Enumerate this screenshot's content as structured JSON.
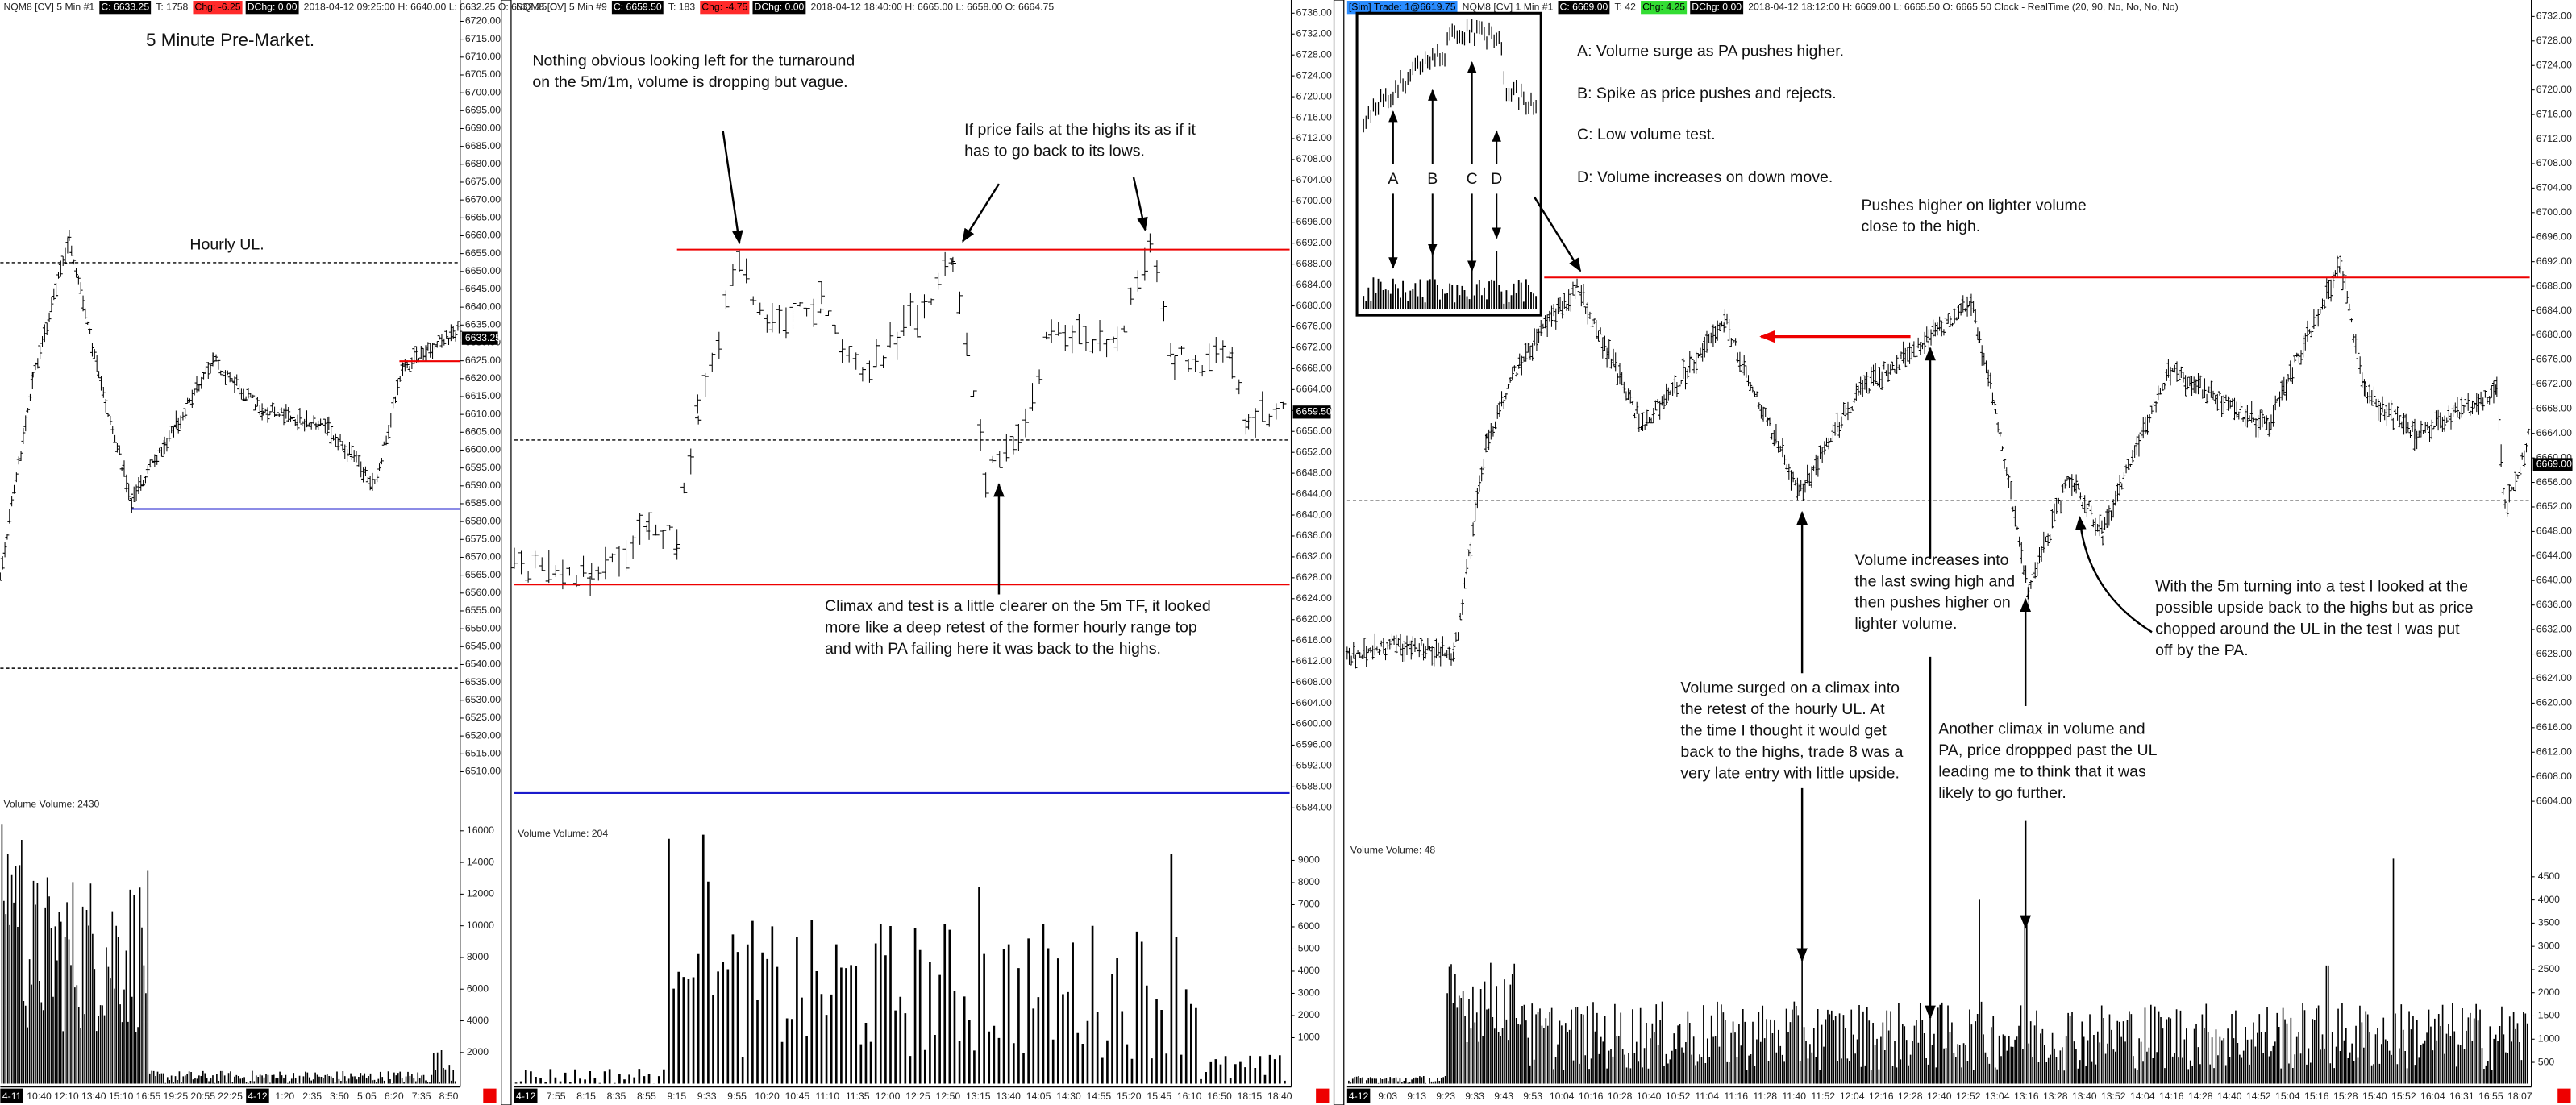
{
  "panels": [
    {
      "header": {
        "symbol": "NQM8 [CV]  5 Min  #1",
        "close": "C: 6633.25",
        "ticks": "T: 1758",
        "change": "Chg: -6.25",
        "day_change": "DChg: 0.00",
        "info": "2018-04-12 09:25:00 H: 6640.00 L: 6632.25 O: 6632.25 O:"
      },
      "change_color": "#ff2a2a",
      "last_price": "6633.25",
      "price_axis": [
        "6720.00",
        "6715.00",
        "6710.00",
        "6705.00",
        "6700.00",
        "6695.00",
        "6690.00",
        "6685.00",
        "6680.00",
        "6675.00",
        "6670.00",
        "6665.00",
        "6660.00",
        "6655.00",
        "6650.00",
        "6645.00",
        "6640.00",
        "6635.00",
        "6630.00",
        "6625.00",
        "6620.00",
        "6615.00",
        "6610.00",
        "6605.00",
        "6600.00",
        "6595.00",
        "6590.00",
        "6585.00",
        "6580.00",
        "6575.00",
        "6570.00",
        "6565.00",
        "6560.00",
        "6555.00",
        "6550.00",
        "6545.00",
        "6540.00",
        "6535.00",
        "6530.00",
        "6525.00",
        "6520.00",
        "6515.00",
        "6510.00"
      ],
      "volume_title": "Volume  Volume: 2430",
      "volume_axis": [
        "16000",
        "14000",
        "12000",
        "10000",
        "8000",
        "6000",
        "4000",
        "2000"
      ],
      "time_axis": [
        "4-11",
        "10:40",
        "12:10",
        "13:40",
        "15:10",
        "16:55",
        "19:25",
        "20:55",
        "22:25",
        "4-12",
        "1:20",
        "2:35",
        "3:50",
        "5:05",
        "6:20",
        "7:35",
        "8:50"
      ],
      "annotations": [
        {
          "lines": [
            "5 Minute Pre-Market."
          ]
        },
        {
          "lines": [
            "Hourly UL."
          ]
        }
      ]
    },
    {
      "header": {
        "symbol": "NQM8 [CV]  5 Min  #9",
        "close": "C: 6659.50",
        "ticks": "T: 183",
        "change": "Chg: -4.75",
        "day_change": "DChg: 0.00",
        "info": "2018-04-12 18:40:00 H: 6665.00 L: 6658.00 O: 6664.75"
      },
      "change_color": "#ff2a2a",
      "last_price": "6659.50",
      "price_axis": [
        "6736.00",
        "6732.00",
        "6728.00",
        "6724.00",
        "6720.00",
        "6716.00",
        "6712.00",
        "6708.00",
        "6704.00",
        "6700.00",
        "6696.00",
        "6692.00",
        "6688.00",
        "6684.00",
        "6680.00",
        "6676.00",
        "6672.00",
        "6668.00",
        "6664.00",
        "6660.00",
        "6656.00",
        "6652.00",
        "6648.00",
        "6644.00",
        "6640.00",
        "6636.00",
        "6632.00",
        "6628.00",
        "6624.00",
        "6620.00",
        "6616.00",
        "6612.00",
        "6608.00",
        "6604.00",
        "6600.00",
        "6596.00",
        "6592.00",
        "6588.00",
        "6584.00"
      ],
      "volume_title": "Volume  Volume: 204",
      "volume_axis": [
        "9000",
        "8000",
        "7000",
        "6000",
        "5000",
        "4000",
        "3000",
        "2000",
        "1000"
      ],
      "time_axis": [
        "4-12",
        "7:55",
        "8:15",
        "8:35",
        "8:55",
        "9:15",
        "9:33",
        "9:55",
        "10:20",
        "10:45",
        "11:10",
        "11:35",
        "12:00",
        "12:25",
        "12:50",
        "13:15",
        "13:40",
        "14:05",
        "14:30",
        "14:55",
        "15:20",
        "15:45",
        "16:10",
        "16:50",
        "18:15",
        "18:40"
      ],
      "annotations": [
        {
          "lines": [
            "Nothing obvious looking left for the turnaround",
            "on the 5m/1m, volume is dropping but vague."
          ]
        },
        {
          "lines": [
            "If price fails at the highs its as if it",
            "has to go back to its lows."
          ]
        },
        {
          "lines": [
            "Climax and test is a little clearer on the 5m TF, it looked",
            "more like a deep retest of the former hourly range top",
            "and with PA failing here it was back to the highs."
          ]
        }
      ]
    },
    {
      "header": {
        "sim": "[Sim]  Trade: 1@6619.75",
        "symbol": "NQM8 [CV]  1 Min  #1",
        "close": "C: 6669.00",
        "ticks": "T: 42",
        "change": "Chg: 4.25",
        "day_change": "DChg: 0.00",
        "info": "2018-04-12 18:12:00 H: 6669.00 L: 6665.50 O: 6665.50 Clock - RealTime   (20, 90, No, No, No, No)"
      },
      "change_color": "#33dd33",
      "last_price": "6669.00",
      "price_axis": [
        "6732.00",
        "6728.00",
        "6724.00",
        "6720.00",
        "6716.00",
        "6712.00",
        "6708.00",
        "6704.00",
        "6700.00",
        "6696.00",
        "6692.00",
        "6688.00",
        "6684.00",
        "6680.00",
        "6676.00",
        "6672.00",
        "6668.00",
        "6664.00",
        "6660.00",
        "6656.00",
        "6652.00",
        "6648.00",
        "6644.00",
        "6640.00",
        "6636.00",
        "6632.00",
        "6628.00",
        "6624.00",
        "6620.00",
        "6616.00",
        "6612.00",
        "6608.00",
        "6604.00"
      ],
      "volume_title": "Volume  Volume: 48",
      "volume_axis": [
        "4500",
        "4000",
        "3500",
        "3000",
        "2500",
        "2000",
        "1500",
        "1000",
        "500"
      ],
      "time_axis": [
        "4-12",
        "9:03",
        "9:13",
        "9:23",
        "9:33",
        "9:43",
        "9:53",
        "10:04",
        "10:16",
        "10:28",
        "10:40",
        "10:52",
        "11:04",
        "11:16",
        "11:28",
        "11:40",
        "11:52",
        "12:04",
        "12:16",
        "12:28",
        "12:40",
        "12:52",
        "13:04",
        "13:16",
        "13:28",
        "13:40",
        "13:52",
        "14:04",
        "14:16",
        "14:28",
        "14:40",
        "14:52",
        "15:04",
        "15:16",
        "15:28",
        "15:40",
        "15:52",
        "16:04",
        "16:31",
        "16:55",
        "18:07"
      ],
      "inset_labels": [
        "A",
        "B",
        "C",
        "D"
      ],
      "annotations": [
        {
          "lines": [
            "A:  Volume surge as PA pushes higher."
          ]
        },
        {
          "lines": [
            "B:  Spike as price pushes and rejects."
          ]
        },
        {
          "lines": [
            "C:  Low volume test."
          ]
        },
        {
          "lines": [
            "D: Volume increases on down move."
          ]
        },
        {
          "lines": [
            "Pushes higher on lighter volume",
            "close to the high."
          ]
        },
        {
          "lines": [
            "Volume increases into",
            "the last swing high and",
            "then pushes higher on",
            "lighter volume."
          ]
        },
        {
          "lines": [
            "With the 5m turning into a test I looked at the",
            "possible upside back to the highs but as price",
            "chopped around the UL in the test I was put",
            "off by the PA."
          ]
        },
        {
          "lines": [
            "Volume surged on a climax into",
            "the retest of the hourly UL.  At",
            "the time I thought it would get",
            "back to the highs, trade 8 was a",
            "very late entry with little upside."
          ]
        },
        {
          "lines": [
            "Another climax in volume and",
            "PA, price droppped past the UL",
            "leading me to think that it was",
            "likely to go further."
          ]
        }
      ]
    }
  ]
}
